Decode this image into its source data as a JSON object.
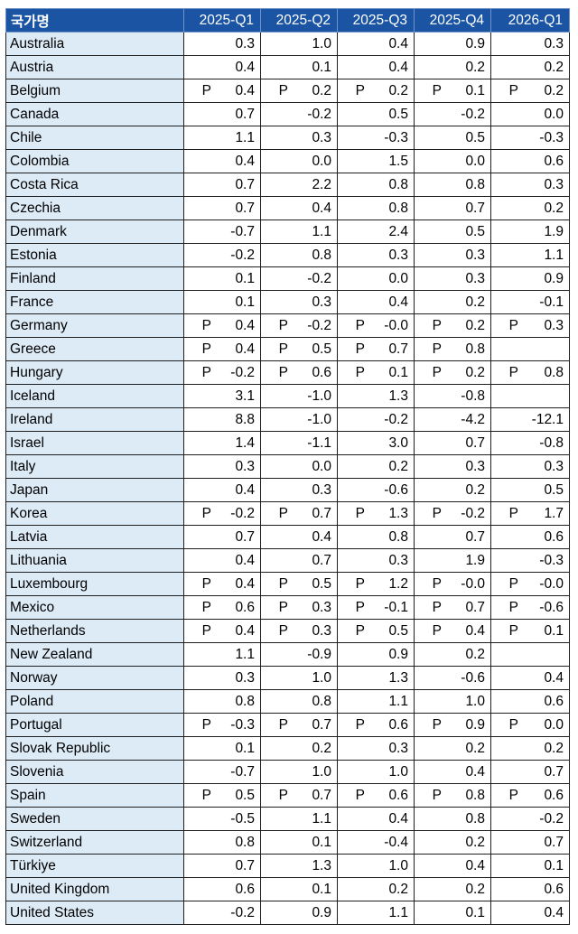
{
  "table": {
    "headers": [
      "국가명",
      "2025-Q1",
      "2025-Q2",
      "2025-Q3",
      "2025-Q4",
      "2026-Q1"
    ],
    "rows": [
      {
        "country": "Australia",
        "cells": [
          [
            "",
            "0.3"
          ],
          [
            "",
            "1.0"
          ],
          [
            "",
            "0.4"
          ],
          [
            "",
            "0.9"
          ],
          [
            "",
            "0.3"
          ]
        ]
      },
      {
        "country": "Austria",
        "cells": [
          [
            "",
            "0.4"
          ],
          [
            "",
            "0.1"
          ],
          [
            "",
            "0.4"
          ],
          [
            "",
            "0.2"
          ],
          [
            "",
            "0.2"
          ]
        ]
      },
      {
        "country": "Belgium",
        "cells": [
          [
            "P",
            "0.4"
          ],
          [
            "P",
            "0.2"
          ],
          [
            "P",
            "0.2"
          ],
          [
            "P",
            "0.1"
          ],
          [
            "P",
            "0.2"
          ]
        ]
      },
      {
        "country": "Canada",
        "cells": [
          [
            "",
            "0.7"
          ],
          [
            "",
            "-0.2"
          ],
          [
            "",
            "0.5"
          ],
          [
            "",
            "-0.2"
          ],
          [
            "",
            "0.0"
          ]
        ]
      },
      {
        "country": "Chile",
        "cells": [
          [
            "",
            "1.1"
          ],
          [
            "",
            "0.3"
          ],
          [
            "",
            "-0.3"
          ],
          [
            "",
            "0.5"
          ],
          [
            "",
            "-0.3"
          ]
        ]
      },
      {
        "country": "Colombia",
        "cells": [
          [
            "",
            "0.4"
          ],
          [
            "",
            "0.0"
          ],
          [
            "",
            "1.5"
          ],
          [
            "",
            "0.0"
          ],
          [
            "",
            "0.6"
          ]
        ]
      },
      {
        "country": "Costa Rica",
        "cells": [
          [
            "",
            "0.7"
          ],
          [
            "",
            "2.2"
          ],
          [
            "",
            "0.8"
          ],
          [
            "",
            "0.8"
          ],
          [
            "",
            "0.3"
          ]
        ]
      },
      {
        "country": "Czechia",
        "cells": [
          [
            "",
            "0.7"
          ],
          [
            "",
            "0.4"
          ],
          [
            "",
            "0.8"
          ],
          [
            "",
            "0.7"
          ],
          [
            "",
            "0.2"
          ]
        ]
      },
      {
        "country": "Denmark",
        "cells": [
          [
            "",
            "-0.7"
          ],
          [
            "",
            "1.1"
          ],
          [
            "",
            "2.4"
          ],
          [
            "",
            "0.5"
          ],
          [
            "",
            "1.9"
          ]
        ]
      },
      {
        "country": "Estonia",
        "cells": [
          [
            "",
            "-0.2"
          ],
          [
            "",
            "0.8"
          ],
          [
            "",
            "0.3"
          ],
          [
            "",
            "0.3"
          ],
          [
            "",
            "1.1"
          ]
        ]
      },
      {
        "country": "Finland",
        "cells": [
          [
            "",
            "0.1"
          ],
          [
            "",
            "-0.2"
          ],
          [
            "",
            "0.0"
          ],
          [
            "",
            "0.3"
          ],
          [
            "",
            "0.9"
          ]
        ]
      },
      {
        "country": "France",
        "cells": [
          [
            "",
            "0.1"
          ],
          [
            "",
            "0.3"
          ],
          [
            "",
            "0.4"
          ],
          [
            "",
            "0.2"
          ],
          [
            "",
            "-0.1"
          ]
        ]
      },
      {
        "country": "Germany",
        "cells": [
          [
            "P",
            "0.4"
          ],
          [
            "P",
            "-0.2"
          ],
          [
            "P",
            "-0.0"
          ],
          [
            "P",
            "0.2"
          ],
          [
            "P",
            "0.3"
          ]
        ]
      },
      {
        "country": "Greece",
        "cells": [
          [
            "P",
            "0.4"
          ],
          [
            "P",
            "0.5"
          ],
          [
            "P",
            "0.7"
          ],
          [
            "P",
            "0.8"
          ],
          [
            "",
            ""
          ]
        ]
      },
      {
        "country": "Hungary",
        "cells": [
          [
            "P",
            "-0.2"
          ],
          [
            "P",
            "0.6"
          ],
          [
            "P",
            "0.1"
          ],
          [
            "P",
            "0.2"
          ],
          [
            "P",
            "0.8"
          ]
        ]
      },
      {
        "country": "Iceland",
        "cells": [
          [
            "",
            "3.1"
          ],
          [
            "",
            "-1.0"
          ],
          [
            "",
            "1.3"
          ],
          [
            "",
            "-0.8"
          ],
          [
            "",
            ""
          ]
        ]
      },
      {
        "country": "Ireland",
        "cells": [
          [
            "",
            "8.8"
          ],
          [
            "",
            "-1.0"
          ],
          [
            "",
            "-0.2"
          ],
          [
            "",
            "-4.2"
          ],
          [
            "",
            "-12.1"
          ]
        ]
      },
      {
        "country": "Israel",
        "cells": [
          [
            "",
            "1.4"
          ],
          [
            "",
            "-1.1"
          ],
          [
            "",
            "3.0"
          ],
          [
            "",
            "0.7"
          ],
          [
            "",
            "-0.8"
          ]
        ]
      },
      {
        "country": "Italy",
        "cells": [
          [
            "",
            "0.3"
          ],
          [
            "",
            "0.0"
          ],
          [
            "",
            "0.2"
          ],
          [
            "",
            "0.3"
          ],
          [
            "",
            "0.3"
          ]
        ]
      },
      {
        "country": "Japan",
        "cells": [
          [
            "",
            "0.4"
          ],
          [
            "",
            "0.3"
          ],
          [
            "",
            "-0.6"
          ],
          [
            "",
            "0.2"
          ],
          [
            "",
            "0.5"
          ]
        ]
      },
      {
        "country": "Korea",
        "cells": [
          [
            "P",
            "-0.2"
          ],
          [
            "P",
            "0.7"
          ],
          [
            "P",
            "1.3"
          ],
          [
            "P",
            "-0.2"
          ],
          [
            "P",
            "1.7"
          ]
        ]
      },
      {
        "country": "Latvia",
        "cells": [
          [
            "",
            "0.7"
          ],
          [
            "",
            "0.4"
          ],
          [
            "",
            "0.8"
          ],
          [
            "",
            "0.7"
          ],
          [
            "",
            "0.6"
          ]
        ]
      },
      {
        "country": "Lithuania",
        "cells": [
          [
            "",
            "0.4"
          ],
          [
            "",
            "0.7"
          ],
          [
            "",
            "0.3"
          ],
          [
            "",
            "1.9"
          ],
          [
            "",
            "-0.3"
          ]
        ]
      },
      {
        "country": "Luxembourg",
        "cells": [
          [
            "P",
            "0.4"
          ],
          [
            "P",
            "0.5"
          ],
          [
            "P",
            "1.2"
          ],
          [
            "P",
            "-0.0"
          ],
          [
            "P",
            "-0.0"
          ]
        ]
      },
      {
        "country": "Mexico",
        "cells": [
          [
            "P",
            "0.6"
          ],
          [
            "P",
            "0.3"
          ],
          [
            "P",
            "-0.1"
          ],
          [
            "P",
            "0.7"
          ],
          [
            "P",
            "-0.6"
          ]
        ]
      },
      {
        "country": "Netherlands",
        "cells": [
          [
            "P",
            "0.4"
          ],
          [
            "P",
            "0.3"
          ],
          [
            "P",
            "0.5"
          ],
          [
            "P",
            "0.4"
          ],
          [
            "P",
            "0.1"
          ]
        ]
      },
      {
        "country": "New Zealand",
        "cells": [
          [
            "",
            "1.1"
          ],
          [
            "",
            "-0.9"
          ],
          [
            "",
            "0.9"
          ],
          [
            "",
            "0.2"
          ],
          [
            "",
            ""
          ]
        ]
      },
      {
        "country": "Norway",
        "cells": [
          [
            "",
            "0.3"
          ],
          [
            "",
            "1.0"
          ],
          [
            "",
            "1.3"
          ],
          [
            "",
            "-0.6"
          ],
          [
            "",
            "0.4"
          ]
        ]
      },
      {
        "country": "Poland",
        "cells": [
          [
            "",
            "0.8"
          ],
          [
            "",
            "0.8"
          ],
          [
            "",
            "1.1"
          ],
          [
            "",
            "1.0"
          ],
          [
            "",
            "0.6"
          ]
        ]
      },
      {
        "country": "Portugal",
        "cells": [
          [
            "P",
            "-0.3"
          ],
          [
            "P",
            "0.7"
          ],
          [
            "P",
            "0.6"
          ],
          [
            "P",
            "0.9"
          ],
          [
            "P",
            "0.0"
          ]
        ]
      },
      {
        "country": "Slovak Republic",
        "cells": [
          [
            "",
            "0.1"
          ],
          [
            "",
            "0.2"
          ],
          [
            "",
            "0.3"
          ],
          [
            "",
            "0.2"
          ],
          [
            "",
            "0.2"
          ]
        ]
      },
      {
        "country": "Slovenia",
        "cells": [
          [
            "",
            "-0.7"
          ],
          [
            "",
            "1.0"
          ],
          [
            "",
            "1.0"
          ],
          [
            "",
            "0.4"
          ],
          [
            "",
            "0.7"
          ]
        ]
      },
      {
        "country": "Spain",
        "cells": [
          [
            "P",
            "0.5"
          ],
          [
            "P",
            "0.7"
          ],
          [
            "P",
            "0.6"
          ],
          [
            "P",
            "0.8"
          ],
          [
            "P",
            "0.6"
          ]
        ]
      },
      {
        "country": "Sweden",
        "cells": [
          [
            "",
            "-0.5"
          ],
          [
            "",
            "1.1"
          ],
          [
            "",
            "0.4"
          ],
          [
            "",
            "0.8"
          ],
          [
            "",
            "-0.2"
          ]
        ]
      },
      {
        "country": "Switzerland",
        "cells": [
          [
            "",
            "0.8"
          ],
          [
            "",
            "0.1"
          ],
          [
            "",
            "-0.4"
          ],
          [
            "",
            "0.2"
          ],
          [
            "",
            "0.7"
          ]
        ]
      },
      {
        "country": "Türkiye",
        "cells": [
          [
            "",
            "0.7"
          ],
          [
            "",
            "1.3"
          ],
          [
            "",
            "1.0"
          ],
          [
            "",
            "0.4"
          ],
          [
            "",
            "0.1"
          ]
        ]
      },
      {
        "country": "United Kingdom",
        "cells": [
          [
            "",
            "0.6"
          ],
          [
            "",
            "0.1"
          ],
          [
            "",
            "0.2"
          ],
          [
            "",
            "0.2"
          ],
          [
            "",
            "0.6"
          ]
        ]
      },
      {
        "country": "United States",
        "cells": [
          [
            "",
            "-0.2"
          ],
          [
            "",
            "0.9"
          ],
          [
            "",
            "1.1"
          ],
          [
            "",
            "0.1"
          ],
          [
            "",
            "0.4"
          ]
        ]
      }
    ]
  }
}
